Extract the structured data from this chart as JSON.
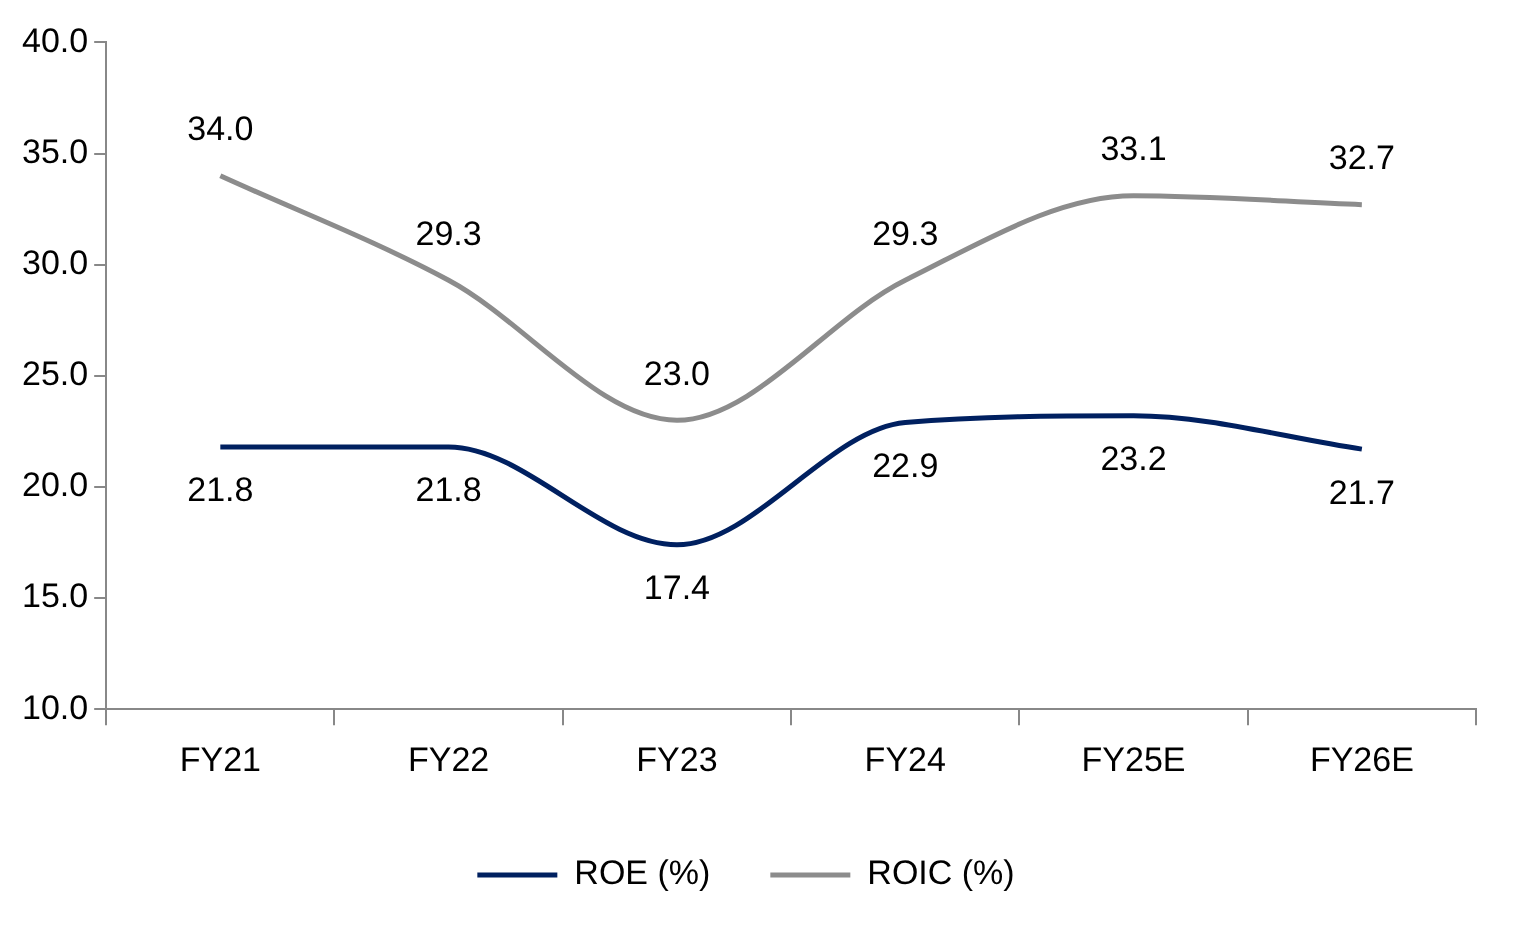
{
  "chart_data": {
    "type": "line",
    "categories": [
      "FY21",
      "FY22",
      "FY23",
      "FY24",
      "FY25E",
      "FY26E"
    ],
    "series": [
      {
        "name": "ROE (%)",
        "color": "#002060",
        "values": [
          21.8,
          21.8,
          17.4,
          22.9,
          23.2,
          21.7
        ],
        "value_labels": [
          "21.8",
          "21.8",
          "17.4",
          "22.9",
          "23.2",
          "21.7"
        ]
      },
      {
        "name": "ROIC (%)",
        "color": "#8c8c8c",
        "values": [
          34.0,
          29.3,
          23.0,
          29.3,
          33.1,
          32.7
        ],
        "value_labels": [
          "34.0",
          "29.3",
          "23.0",
          "29.3",
          "33.1",
          "32.7"
        ]
      }
    ],
    "ylim": [
      10,
      40
    ],
    "yticks": [
      {
        "value": 10,
        "label": "10.0"
      },
      {
        "value": 15,
        "label": "15.0"
      },
      {
        "value": 20,
        "label": "20.0"
      },
      {
        "value": 25,
        "label": "25.0"
      },
      {
        "value": 30,
        "label": "30.0"
      },
      {
        "value": 35,
        "label": "35.0"
      },
      {
        "value": 40,
        "label": "40.0"
      }
    ],
    "grid": false,
    "legend": "bottom",
    "marker": "none",
    "line_style": "solid"
  }
}
